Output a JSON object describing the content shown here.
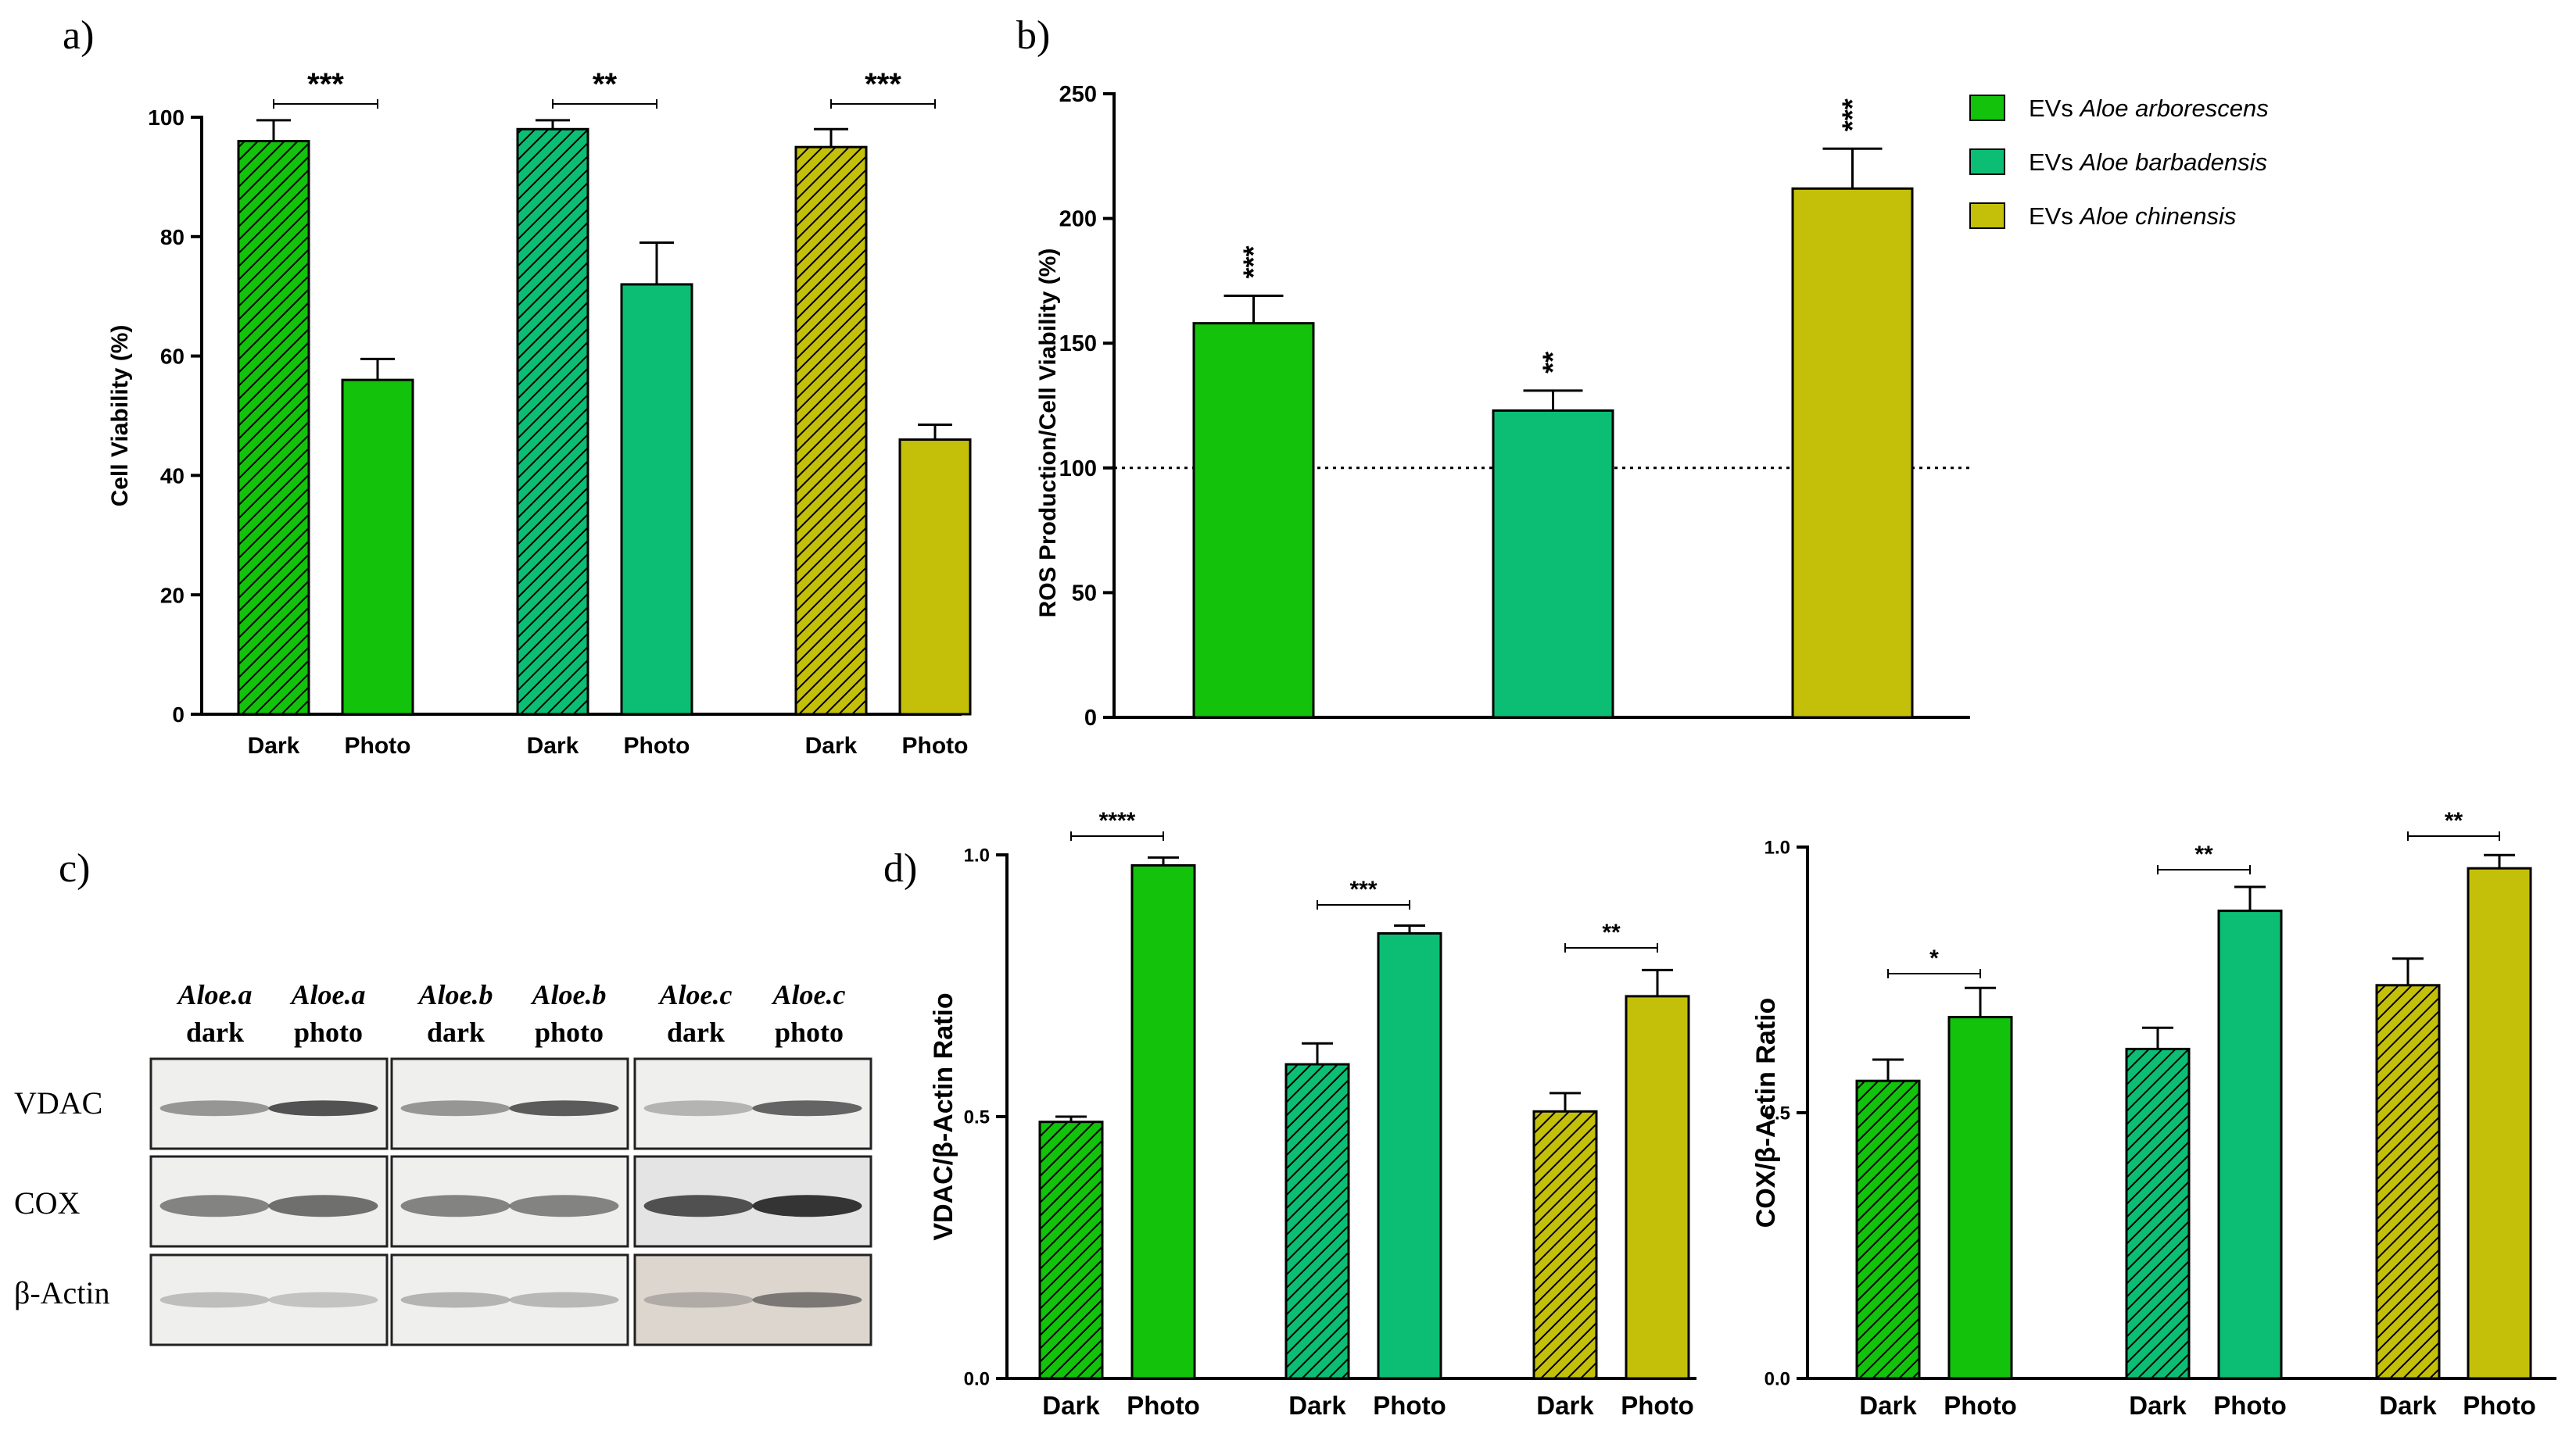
{
  "colors": {
    "arborescens": "#12c20b",
    "barbadensis": "#0bbe74",
    "chinensis": "#c4c00a",
    "axis": "#000000",
    "hatch": "#000000"
  },
  "panel_labels": {
    "a": "a)",
    "b": "b)",
    "c": "c)",
    "d": "d)"
  },
  "chart_data": [
    {
      "id": "a",
      "type": "bar",
      "ylabel": "Cell Viability (%)",
      "ylim": [
        0,
        100
      ],
      "yticks": [
        "0",
        "20",
        "40",
        "60",
        "80",
        "100"
      ],
      "categories": [
        "Dark",
        "Photo",
        "Dark",
        "Photo",
        "Dark",
        "Photo"
      ],
      "groups": [
        "arborescens",
        "barbadensis",
        "chinensis"
      ],
      "values": [
        96,
        56,
        98,
        72,
        95,
        46
      ],
      "errors": [
        3.5,
        3.5,
        1.5,
        7,
        3,
        2.5
      ],
      "significance": [
        "***",
        "**",
        "***"
      ]
    },
    {
      "id": "b",
      "type": "bar",
      "ylabel": "ROS Production/Cell Viability (%)",
      "ylim": [
        0,
        250
      ],
      "yticks": [
        "0",
        "50",
        "100",
        "150",
        "200",
        "250"
      ],
      "reference_line": 100,
      "series": [
        {
          "name": "EVs Aloe arborescens",
          "legend_prefix": "EVs ",
          "legend_italic": "Aloe arborescens",
          "value": 158,
          "error": 11,
          "stars": "***"
        },
        {
          "name": "EVs Aloe barbadensis",
          "legend_prefix": "EVs ",
          "legend_italic": "Aloe barbadensis",
          "value": 123,
          "error": 8,
          "stars": "**"
        },
        {
          "name": "EVs Aloe chinensis",
          "legend_prefix": "EVs ",
          "legend_italic": "Aloe chinensis",
          "value": 212,
          "error": 16,
          "stars": "***"
        }
      ],
      "legend_position": "top-right"
    },
    {
      "id": "d1",
      "type": "bar",
      "ylabel": "VDAC/β-Actin Ratio",
      "ylim": [
        0,
        1.0
      ],
      "yticks": [
        "0.0",
        "0.5",
        "1.0"
      ],
      "categories": [
        "Dark",
        "Photo",
        "Dark",
        "Photo",
        "Dark",
        "Photo"
      ],
      "values": [
        0.49,
        0.98,
        0.6,
        0.85,
        0.51,
        0.73
      ],
      "errors": [
        0.01,
        0.015,
        0.04,
        0.015,
        0.035,
        0.05
      ],
      "significance": [
        "****",
        "***",
        "**"
      ]
    },
    {
      "id": "d2",
      "type": "bar",
      "ylabel": "COX/β-Actin Ratio",
      "ylim": [
        0,
        1.0
      ],
      "yticks": [
        "0.0",
        "0.5",
        "1.0"
      ],
      "categories": [
        "Dark",
        "Photo",
        "Dark",
        "Photo",
        "Dark",
        "Photo"
      ],
      "values": [
        0.56,
        0.68,
        0.62,
        0.88,
        0.74,
        0.96
      ],
      "errors": [
        0.04,
        0.055,
        0.04,
        0.045,
        0.05,
        0.025
      ],
      "significance": [
        "*",
        "**",
        "**"
      ]
    }
  ],
  "blot": {
    "columns": [
      {
        "top": "Aloe.a",
        "bottom": "dark"
      },
      {
        "top": "Aloe.a",
        "bottom": "photo"
      },
      {
        "top": "Aloe.b",
        "bottom": "dark"
      },
      {
        "top": "Aloe.b",
        "bottom": "photo"
      },
      {
        "top": "Aloe.c",
        "bottom": "dark"
      },
      {
        "top": "Aloe.c",
        "bottom": "photo"
      }
    ],
    "rows": [
      "VDAC",
      "COX",
      "β-Actin"
    ]
  }
}
